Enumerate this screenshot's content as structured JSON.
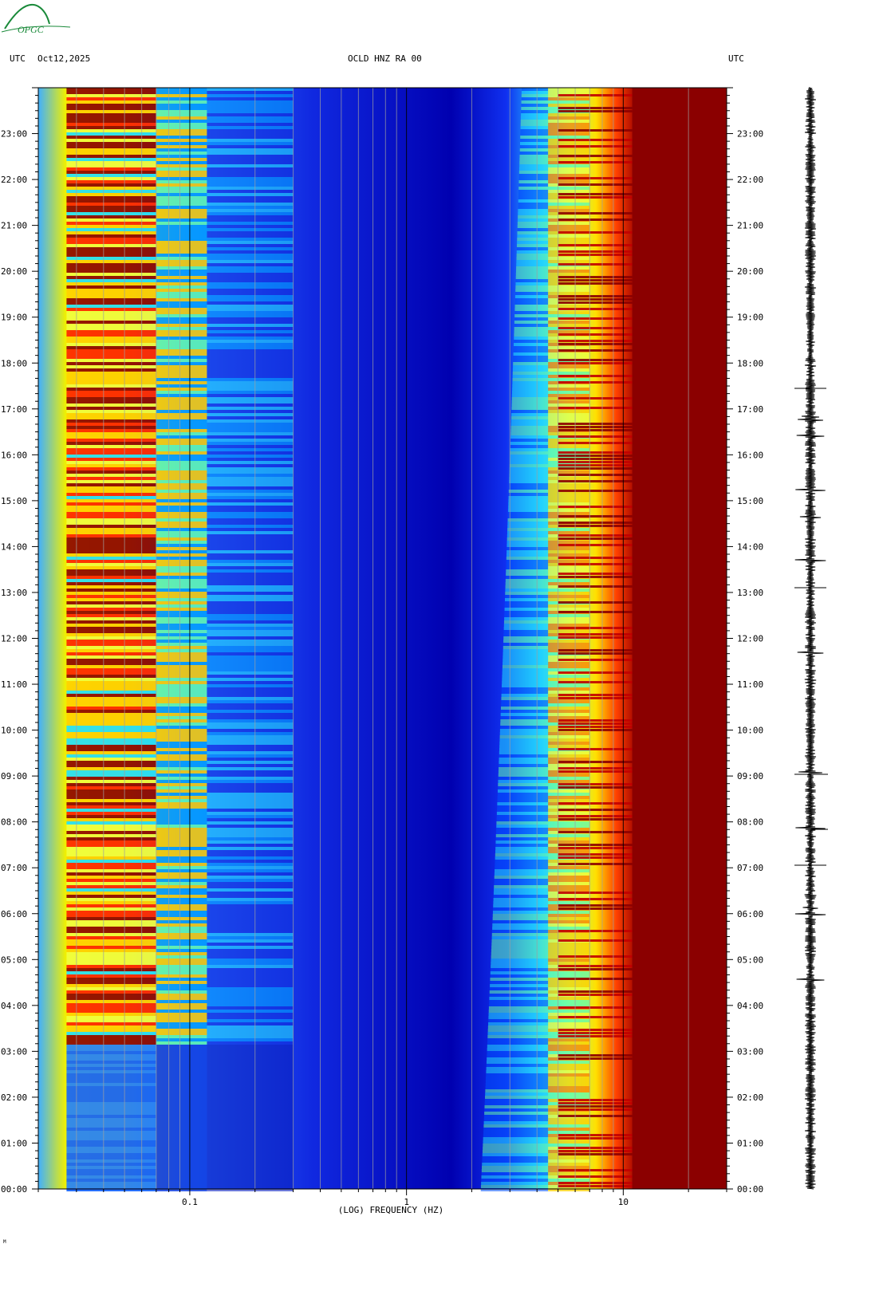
{
  "header": {
    "left_tz": "UTC",
    "date": "Oct12,2025",
    "station": "OCLD HNZ RA 00",
    "right_tz": "UTC"
  },
  "logo": {
    "text": "OPGC",
    "color": "#1a8a3a"
  },
  "chart_data": {
    "type": "heatmap",
    "title": "OCLD HNZ RA 00",
    "xlabel": "(LOG) FREQUENCY (HZ)",
    "x_scale": "log",
    "xlim": [
      0.02,
      30
    ],
    "x_ticks": [
      {
        "value": 0.1,
        "label": "0.1"
      },
      {
        "value": 1,
        "label": "1"
      },
      {
        "value": 10,
        "label": "10"
      }
    ],
    "ylabel": "UTC",
    "ylim_hours": [
      0,
      24
    ],
    "y_ticks": [
      "00:00",
      "01:00",
      "02:00",
      "03:00",
      "04:00",
      "05:00",
      "06:00",
      "07:00",
      "08:00",
      "09:00",
      "10:00",
      "11:00",
      "12:00",
      "13:00",
      "14:00",
      "15:00",
      "16:00",
      "17:00",
      "18:00",
      "19:00",
      "20:00",
      "21:00",
      "22:00",
      "23:00"
    ],
    "colormap": "jet",
    "colors": {
      "low": "#0000a0",
      "mid": "#00e0ff",
      "high": "#ffe000",
      "max": "#8b0000"
    },
    "trace": {
      "panel": "seismogram",
      "color": "#000000"
    }
  },
  "footer_mark": "M"
}
